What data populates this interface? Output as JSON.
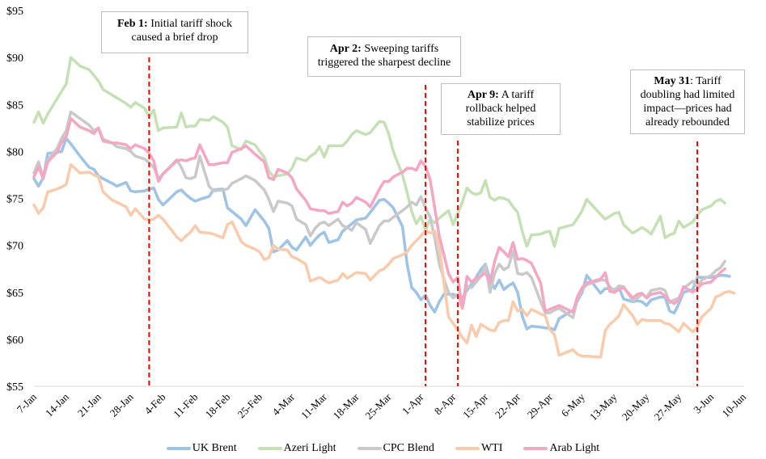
{
  "chart_data": {
    "type": "line",
    "title": "",
    "xlabel": "",
    "ylabel": "",
    "ylim": [
      55,
      95
    ],
    "yticks": [
      55,
      60,
      65,
      70,
      75,
      80,
      85,
      90,
      95
    ],
    "ytick_labels": [
      "$55",
      "$60",
      "$65",
      "$70",
      "$75",
      "$80",
      "$85",
      "$90",
      "$95"
    ],
    "xlim_days": [
      0,
      154
    ],
    "xtick_labels": [
      "7-Jan",
      "14-Jan",
      "21-Jan",
      "28-Jan",
      "4-Feb",
      "11-Feb",
      "18-Feb",
      "25-Feb",
      "4-Mar",
      "11-Mar",
      "18-Mar",
      "25-Mar",
      "1-Apr",
      "8-Apr",
      "15-Apr",
      "22-Apr",
      "29-Apr",
      "6-May",
      "13-May",
      "20-May",
      "27-May",
      "3-Jun",
      "10-Jun"
    ],
    "xtick_days": [
      0,
      7,
      14,
      21,
      28,
      35,
      42,
      49,
      56,
      63,
      70,
      77,
      84,
      91,
      98,
      105,
      112,
      119,
      126,
      133,
      140,
      147,
      154
    ],
    "grid": "baseline-only",
    "legend_position": "bottom",
    "x_days": [
      0,
      1,
      2,
      3,
      5,
      6,
      7,
      8,
      10,
      12,
      13,
      14,
      15,
      17,
      18,
      20,
      21,
      22,
      24,
      25,
      26,
      27,
      28,
      31,
      32,
      33,
      34,
      35,
      36,
      38,
      39,
      41,
      42,
      43,
      45,
      46,
      48,
      49,
      50,
      51,
      52,
      53,
      55,
      56,
      57,
      59,
      60,
      61,
      62,
      63,
      64,
      66,
      67,
      68,
      69,
      70,
      72,
      73,
      75,
      76,
      77,
      78,
      80,
      81,
      82,
      83,
      84,
      85,
      86,
      87,
      88,
      89,
      90,
      91,
      92,
      93,
      94,
      95,
      96,
      97,
      98,
      99,
      100,
      101,
      102,
      103,
      104,
      105,
      106,
      107,
      108,
      110,
      111,
      112,
      113,
      114,
      117,
      118,
      119,
      120,
      123,
      124,
      125,
      126,
      127,
      128,
      130,
      131,
      132,
      133,
      134,
      136,
      137,
      138,
      139,
      140,
      141,
      143,
      144,
      145,
      147,
      148,
      149,
      150,
      151,
      152,
      153,
      154
    ],
    "series": [
      {
        "name": "UK Brent",
        "color": "#9dc3e6",
        "values": [
          77.1,
          76.3,
          77.2,
          79.8,
          79.9,
          80.0,
          81.4,
          80.8,
          79.5,
          78.3,
          78.1,
          77.4,
          77.1,
          76.6,
          76.3,
          76.7,
          75.8,
          75.7,
          75.8,
          76.0,
          76.1,
          74.9,
          74.3,
          75.7,
          75.9,
          75.4,
          75.0,
          74.7,
          74.9,
          75.2,
          75.9,
          76.0,
          74.0,
          73.6,
          72.8,
          72.1,
          73.8,
          73.2,
          72.6,
          71.8,
          69.3,
          69.5,
          70.5,
          69.8,
          69.5,
          70.9,
          70.0,
          70.6,
          71.1,
          71.4,
          70.3,
          70.6,
          71.5,
          71.9,
          72.3,
          72.7,
          72.9,
          73.5,
          74.8,
          74.9,
          74.5,
          74.0,
          72.0,
          68.0,
          65.5,
          65.0,
          64.2,
          64.7,
          63.6,
          62.9,
          64.0,
          64.8,
          64.8,
          64.8,
          64.6,
          64.4,
          65.2,
          65.9,
          66.6,
          67.4,
          68.0,
          66.4,
          65.4,
          66.3,
          65.3,
          65.7,
          66.0,
          65.0,
          62.5,
          61.1,
          61.4,
          61.3,
          61.2,
          61.2,
          61.0,
          62.2,
          63.1,
          64.1,
          65.0,
          66.8,
          64.9,
          65.4,
          65.4,
          65.3,
          65.5,
          64.3,
          64.0,
          64.1,
          64.0,
          63.6,
          64.2,
          64.5,
          64.5,
          63.0,
          62.8,
          63.8,
          65.0,
          65.3,
          66.6,
          66.6,
          66.6,
          66.7,
          66.8,
          66.8,
          66.7
        ]
      },
      {
        "name": "Azeri Light",
        "color": "#c5e0b4",
        "values": [
          83.1,
          84.2,
          83.0,
          84.0,
          85.6,
          86.4,
          87.2,
          90.0,
          89.1,
          88.7,
          88.1,
          87.5,
          86.6,
          86.0,
          85.7,
          85.1,
          84.7,
          85.2,
          84.6,
          83.7,
          84.4,
          82.2,
          82.5,
          82.6,
          84.1,
          82.6,
          82.7,
          82.7,
          83.4,
          83.3,
          83.7,
          83.1,
          82.6,
          80.6,
          80.2,
          81.1,
          80.7,
          80.0,
          79.4,
          77.9,
          77.3,
          77.4,
          77.6,
          78.2,
          79.3,
          79.0,
          79.5,
          79.8,
          80.5,
          79.4,
          80.6,
          80.6,
          80.6,
          81.1,
          81.8,
          82.2,
          81.8,
          82.0,
          83.2,
          83.1,
          81.9,
          80.0,
          77.5,
          75.6,
          73.6,
          72.3,
          73.1,
          71.6,
          72.8,
          72.4,
          72.9,
          73.3,
          73.7,
          72.2,
          73.4,
          74.6,
          76.1,
          75.6,
          75.4,
          75.6,
          76.9,
          75.1,
          74.8,
          75.1,
          75.0,
          74.8,
          74.1,
          73.5,
          71.5,
          69.9,
          71.1,
          71.2,
          71.4,
          71.5,
          69.9,
          71.8,
          72.2,
          72.9,
          73.7,
          74.9,
          73.3,
          72.8,
          73.1,
          73.4,
          73.5,
          72.2,
          71.3,
          71.6,
          71.9,
          71.6,
          71.2,
          73.1,
          70.8,
          71.1,
          71.3,
          72.6,
          71.9,
          72.5,
          73.2,
          73.8,
          74.2,
          74.7,
          74.9,
          74.5
        ]
      },
      {
        "name": "CPC Blend",
        "color": "#c9c9c9",
        "values": [
          77.7,
          78.9,
          77.2,
          79.1,
          80.3,
          81.4,
          82.2,
          84.2,
          83.5,
          82.8,
          82.2,
          82.5,
          81.3,
          80.9,
          80.5,
          80.3,
          80.0,
          79.5,
          79.2,
          78.8,
          78.3,
          77.1,
          77.6,
          79.1,
          78.3,
          77.2,
          77.1,
          77.3,
          79.5,
          76.3,
          75.8,
          75.9,
          76.0,
          76.6,
          77.1,
          77.4,
          76.9,
          76.4,
          75.9,
          74.9,
          73.6,
          74.7,
          74.5,
          74.2,
          72.8,
          72.2,
          71.0,
          71.8,
          72.3,
          72.5,
          72.1,
          72.8,
          72.1,
          71.9,
          71.6,
          72.4,
          71.7,
          70.2,
          72.1,
          72.6,
          72.6,
          73.0,
          73.7,
          74.1,
          74.6,
          74.3,
          75.2,
          74.0,
          73.0,
          70.8,
          68.0,
          66.4,
          65.0,
          64.4,
          64.8,
          63.3,
          65.7,
          65.5,
          66.1,
          66.7,
          67.9,
          65.0,
          67.0,
          68.0,
          67.4,
          67.7,
          69.4,
          67.0,
          66.9,
          67.1,
          66.6,
          64.0,
          62.8,
          62.8,
          63.1,
          63.3,
          62.3,
          64.3,
          65.3,
          65.8,
          66.3,
          66.3,
          65.6,
          65.2,
          65.7,
          65.6,
          64.1,
          64.4,
          64.8,
          64.5,
          65.2,
          65.4,
          65.2,
          63.9,
          64.2,
          64.4,
          65.4,
          66.2,
          65.6,
          66.3,
          66.8,
          67.3,
          67.6,
          68.3
        ]
      },
      {
        "name": "WTI",
        "color": "#f8cbad",
        "values": [
          74.3,
          73.4,
          74.0,
          75.7,
          76.0,
          76.2,
          76.5,
          78.6,
          77.7,
          77.8,
          77.5,
          77.3,
          75.7,
          74.8,
          74.6,
          74.1,
          73.2,
          73.9,
          72.8,
          72.7,
          72.8,
          73.2,
          72.8,
          70.9,
          70.5,
          71.0,
          71.4,
          72.1,
          71.4,
          71.3,
          71.2,
          70.8,
          72.2,
          72.5,
          70.4,
          70.0,
          69.6,
          69.3,
          68.5,
          68.7,
          70.0,
          69.6,
          69.5,
          68.8,
          68.6,
          68.0,
          66.2,
          66.4,
          66.6,
          66.3,
          66.0,
          66.3,
          67.0,
          66.5,
          66.8,
          67.1,
          67.0,
          66.3,
          67.3,
          67.5,
          68.0,
          68.6,
          69.0,
          69.3,
          70.0,
          70.5,
          71.0,
          71.6,
          71.3,
          71.5,
          70.0,
          66.0,
          62.4,
          61.7,
          61.0,
          60.2,
          59.6,
          61.5,
          60.3,
          61.6,
          61.3,
          61.0,
          60.9,
          61.8,
          62.0,
          62.0,
          64.0,
          63.0,
          63.2,
          62.5,
          63.2,
          62.7,
          62.5,
          61.0,
          60.5,
          58.3,
          58.9,
          58.4,
          58.2,
          58.2,
          58.1,
          60.9,
          61.6,
          62.0,
          62.5,
          63.7,
          62.5,
          61.6,
          62.1,
          62.0,
          62.0,
          62.0,
          61.7,
          61.6,
          61.2,
          60.8,
          61.7,
          60.8,
          61.3,
          62.4,
          63.3,
          64.5,
          64.7,
          65.0,
          65.1,
          64.9
        ]
      },
      {
        "name": "Arab Light",
        "color": "#f4a6c3",
        "values": [
          77.3,
          78.4,
          77.1,
          78.9,
          79.9,
          81.0,
          81.6,
          83.5,
          82.6,
          82.2,
          81.9,
          82.5,
          81.1,
          80.9,
          80.9,
          80.7,
          80.3,
          80.7,
          80.3,
          79.8,
          79.0,
          76.8,
          77.6,
          79.0,
          79.1,
          79.0,
          79.2,
          79.3,
          80.7,
          78.6,
          78.6,
          78.8,
          78.8,
          79.9,
          80.3,
          80.6,
          79.7,
          79.3,
          78.9,
          77.2,
          77.0,
          78.1,
          77.7,
          77.2,
          76.0,
          74.8,
          73.9,
          73.8,
          73.7,
          73.7,
          73.4,
          73.6,
          74.6,
          74.2,
          74.5,
          75.1,
          74.6,
          74.1,
          76.0,
          76.8,
          76.8,
          77.3,
          77.8,
          78.2,
          78.2,
          78.0,
          79.0,
          78.4,
          77.0,
          74.0,
          71.0,
          69.0,
          67.0,
          66.1,
          66.6,
          63.3,
          66.7,
          66.1,
          66.5,
          66.7,
          67.1,
          66.0,
          68.3,
          69.8,
          69.3,
          68.8,
          70.3,
          68.5,
          68.6,
          68.4,
          68.1,
          66.0,
          63.0,
          63.2,
          63.4,
          63.6,
          62.9,
          64.6,
          65.5,
          66.0,
          66.4,
          67.1,
          65.1,
          65.0,
          65.3,
          65.5,
          64.4,
          64.8,
          64.9,
          64.4,
          64.8,
          65.0,
          64.6,
          64.1,
          63.8,
          64.2,
          65.6,
          65.0,
          65.4,
          65.9,
          66.1,
          66.6,
          67.1,
          67.5
        ]
      }
    ],
    "annotations": [
      {
        "day": 25,
        "label_bold": "Feb 1:",
        "label_rest": " Initial tariff shock caused a brief drop"
      },
      {
        "day": 85,
        "label_bold": "Apr 2:",
        "label_rest": " Sweeping tariffs triggered the sharpest decline"
      },
      {
        "day": 92,
        "label_bold": "Apr 9:",
        "label_rest": " A tariff rollback helped stabilize prices"
      },
      {
        "day": 144,
        "label_bold": "May 31",
        "label_rest": ": Tariff doubling had limited impact—prices had already rebounded"
      }
    ],
    "event_line_color": "#ff0000",
    "axis_color": "#d9d9d9"
  }
}
